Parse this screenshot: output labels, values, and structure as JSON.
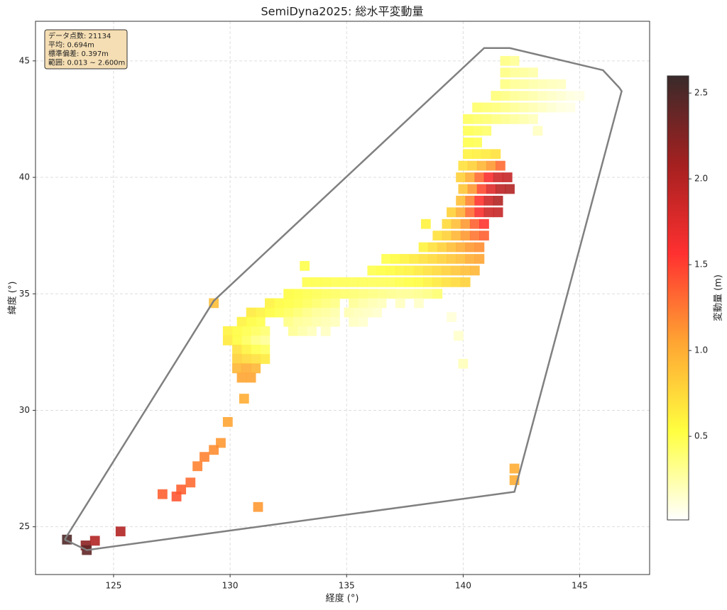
{
  "chart_data": {
    "type": "scatter",
    "title": "SemiDyna2025: 総水平変動量",
    "xlabel": "経度 (°)",
    "ylabel": "緯度 (°)",
    "colorbar_label": "変動量 (m)",
    "stats": [
      "データ点数: 21134",
      "平均: 0.694m",
      "標準偏差: 0.397m",
      "範囲: 0.013 ~ 2.600m"
    ],
    "xlim": [
      121.65,
      148.0
    ],
    "ylim": [
      22.95,
      46.7
    ],
    "xticks": [
      125,
      130,
      135,
      140,
      145
    ],
    "yticks": [
      25,
      30,
      35,
      40,
      45
    ],
    "clim": [
      0.013,
      2.6
    ],
    "cticks": [
      0.5,
      {
        "value": 1.0,
        "label": "1.0"
      },
      1.5,
      {
        "value": 2.0,
        "label": "2.0"
      },
      2.5
    ],
    "colormap": [
      "#ffffff",
      "#ffff40",
      "#ffa533",
      "#ff3030",
      "#a52020",
      "#3a2a2a"
    ],
    "grid": true,
    "hull": {
      "color": "#808080",
      "x": [
        122.9,
        123.85,
        142.2,
        146.8,
        146.7,
        146.0,
        142.0,
        140.9,
        129.3,
        122.9
      ],
      "y": [
        24.45,
        24.0,
        26.5,
        43.7,
        43.85,
        44.6,
        45.55,
        45.55,
        34.7,
        24.45
      ]
    },
    "x": [
      141.8,
      142.2,
      141.8,
      142.2,
      142.6,
      143.0,
      141.8,
      142.2,
      142.6,
      143.0,
      143.4,
      143.8,
      144.2,
      141.4,
      141.8,
      142.2,
      142.6,
      143.0,
      143.4,
      143.8,
      144.2,
      144.6,
      145.0,
      140.6,
      141.0,
      141.4,
      141.8,
      142.2,
      142.6,
      143.0,
      143.4,
      143.8,
      144.2,
      144.6,
      140.2,
      140.6,
      141.0,
      141.4,
      141.8,
      142.2,
      142.6,
      143.0,
      140.2,
      140.6,
      141.0,
      143.2,
      140.2,
      140.6,
      140.2,
      140.6,
      141.0,
      141.4,
      140.0,
      140.4,
      140.8,
      141.2,
      141.6,
      139.9,
      140.3,
      140.7,
      141.1,
      141.5,
      141.9,
      140.0,
      140.4,
      140.8,
      141.2,
      141.6,
      142.0,
      139.9,
      140.3,
      140.7,
      141.1,
      141.5,
      139.5,
      139.9,
      140.3,
      140.7,
      141.1,
      141.5,
      138.4,
      139.3,
      139.7,
      140.1,
      140.5,
      140.9,
      138.9,
      139.3,
      139.7,
      140.1,
      140.5,
      140.9,
      138.3,
      138.7,
      139.1,
      139.5,
      139.9,
      140.3,
      140.7,
      136.7,
      137.1,
      137.5,
      137.9,
      138.3,
      138.7,
      139.1,
      139.5,
      139.9,
      140.3,
      140.7,
      136.1,
      136.5,
      136.9,
      137.3,
      137.7,
      138.1,
      138.5,
      138.9,
      139.3,
      139.7,
      140.1,
      140.5,
      133.3,
      133.7,
      134.1,
      134.5,
      134.9,
      135.3,
      135.7,
      136.1,
      136.5,
      136.9,
      137.3,
      137.7,
      138.1,
      138.5,
      138.9,
      139.3,
      139.7,
      140.1,
      132.5,
      132.9,
      133.3,
      133.7,
      134.1,
      134.5,
      134.9,
      135.3,
      135.7,
      136.1,
      136.5,
      136.9,
      137.3,
      137.7,
      138.1,
      138.5,
      138.9,
      131.7,
      132.1,
      132.5,
      132.9,
      133.3,
      133.7,
      134.1,
      134.5,
      135.3,
      135.7,
      136.1,
      136.5,
      137.3,
      138.1,
      130.9,
      131.3,
      131.7,
      132.1,
      132.5,
      132.9,
      133.3,
      133.7,
      134.1,
      134.5,
      135.1,
      135.5,
      135.9,
      136.3,
      130.5,
      130.9,
      131.3,
      132.5,
      132.9,
      133.3,
      133.7,
      134.1,
      134.5,
      135.3,
      135.7,
      129.9,
      130.3,
      130.7,
      131.1,
      131.5,
      132.7,
      133.1,
      133.5,
      134.1,
      129.9,
      130.3,
      130.7,
      131.1,
      131.5,
      130.3,
      130.7,
      131.1,
      131.5,
      130.3,
      130.7,
      131.1,
      131.5,
      130.3,
      130.7,
      131.1,
      130.5,
      130.9,
      130.6,
      129.9,
      129.6,
      129.3,
      128.9,
      128.6,
      128.3,
      127.9,
      127.7,
      127.1,
      125.3,
      124.2,
      123.8,
      123.0,
      123.85,
      142.2,
      142.2,
      131.2,
      129.3,
      139.5,
      139.8,
      140.0,
      133.2
    ],
    "y": [
      45.0,
      45.0,
      44.5,
      44.5,
      44.5,
      44.5,
      44.0,
      44.0,
      44.0,
      44.0,
      44.0,
      44.0,
      44.0,
      43.5,
      43.5,
      43.5,
      43.5,
      43.5,
      43.5,
      43.5,
      43.5,
      43.5,
      43.5,
      43.0,
      43.0,
      43.0,
      43.0,
      43.0,
      43.0,
      43.0,
      43.0,
      43.0,
      43.0,
      43.0,
      42.5,
      42.5,
      42.5,
      42.5,
      42.5,
      42.5,
      42.5,
      42.5,
      42.0,
      42.0,
      42.0,
      42.0,
      41.5,
      41.5,
      41.0,
      41.0,
      41.0,
      41.0,
      40.5,
      40.5,
      40.5,
      40.5,
      40.5,
      40.0,
      40.0,
      40.0,
      40.0,
      40.0,
      40.0,
      39.5,
      39.5,
      39.5,
      39.5,
      39.5,
      39.5,
      39.0,
      39.0,
      39.0,
      39.0,
      39.0,
      38.5,
      38.5,
      38.5,
      38.5,
      38.5,
      38.5,
      38.0,
      38.0,
      38.0,
      38.0,
      38.0,
      38.0,
      37.5,
      37.5,
      37.5,
      37.5,
      37.5,
      37.5,
      37.0,
      37.0,
      37.0,
      37.0,
      37.0,
      37.0,
      37.0,
      36.5,
      36.5,
      36.5,
      36.5,
      36.5,
      36.5,
      36.5,
      36.5,
      36.5,
      36.5,
      36.5,
      36.0,
      36.0,
      36.0,
      36.0,
      36.0,
      36.0,
      36.0,
      36.0,
      36.0,
      36.0,
      36.0,
      36.0,
      35.5,
      35.5,
      35.5,
      35.5,
      35.5,
      35.5,
      35.5,
      35.5,
      35.5,
      35.5,
      35.5,
      35.5,
      35.5,
      35.5,
      35.5,
      35.5,
      35.5,
      35.5,
      35.0,
      35.0,
      35.0,
      35.0,
      35.0,
      35.0,
      35.0,
      35.0,
      35.0,
      35.0,
      35.0,
      35.0,
      35.0,
      35.0,
      35.0,
      35.0,
      35.0,
      34.6,
      34.6,
      34.6,
      34.6,
      34.6,
      34.6,
      34.6,
      34.6,
      34.6,
      34.6,
      34.6,
      34.6,
      34.6,
      34.6,
      34.2,
      34.2,
      34.2,
      34.2,
      34.2,
      34.2,
      34.2,
      34.2,
      34.2,
      34.2,
      34.2,
      34.2,
      34.2,
      34.2,
      33.8,
      33.8,
      33.8,
      33.8,
      33.8,
      33.8,
      33.8,
      33.8,
      33.8,
      33.8,
      33.8,
      33.4,
      33.4,
      33.4,
      33.4,
      33.4,
      33.4,
      33.4,
      33.4,
      33.4,
      33.0,
      33.0,
      33.0,
      33.0,
      33.0,
      32.6,
      32.6,
      32.6,
      32.6,
      32.2,
      32.2,
      32.2,
      32.2,
      31.8,
      31.8,
      31.8,
      31.4,
      31.4,
      30.5,
      29.5,
      28.6,
      28.3,
      28.0,
      27.6,
      26.9,
      26.6,
      26.3,
      26.4,
      24.8,
      24.4,
      24.2,
      24.45,
      24.0,
      27.5,
      27.0,
      25.85,
      34.6,
      34.0,
      33.2,
      32.0,
      36.2
    ],
    "values": [
      0.35,
      0.3,
      0.35,
      0.3,
      0.28,
      0.25,
      0.35,
      0.3,
      0.28,
      0.25,
      0.22,
      0.2,
      0.18,
      0.38,
      0.35,
      0.3,
      0.27,
      0.24,
      0.2,
      0.17,
      0.14,
      0.1,
      0.08,
      0.42,
      0.4,
      0.38,
      0.34,
      0.3,
      0.26,
      0.22,
      0.18,
      0.14,
      0.1,
      0.08,
      0.45,
      0.42,
      0.4,
      0.36,
      0.32,
      0.28,
      0.24,
      0.2,
      0.48,
      0.45,
      0.42,
      0.18,
      0.5,
      0.48,
      0.6,
      0.62,
      0.65,
      0.7,
      0.7,
      0.8,
      0.95,
      1.1,
      1.3,
      0.8,
      1.0,
      1.3,
      1.6,
      1.85,
      1.9,
      0.85,
      1.1,
      1.45,
      1.75,
      1.95,
      2.0,
      0.9,
      1.2,
      1.55,
      1.85,
      2.0,
      0.8,
      1.0,
      1.3,
      1.6,
      1.85,
      1.9,
      0.6,
      0.75,
      0.9,
      1.1,
      1.35,
      1.55,
      0.7,
      0.8,
      0.95,
      1.1,
      1.25,
      1.35,
      0.6,
      0.7,
      0.8,
      0.9,
      1.0,
      1.1,
      1.15,
      0.5,
      0.55,
      0.6,
      0.65,
      0.7,
      0.75,
      0.8,
      0.85,
      0.9,
      1.0,
      1.05,
      0.5,
      0.52,
      0.55,
      0.58,
      0.6,
      0.65,
      0.7,
      0.75,
      0.8,
      0.85,
      0.9,
      0.95,
      0.5,
      0.5,
      0.5,
      0.48,
      0.48,
      0.47,
      0.47,
      0.46,
      0.46,
      0.47,
      0.5,
      0.52,
      0.55,
      0.6,
      0.65,
      0.7,
      0.75,
      0.8,
      0.55,
      0.52,
      0.5,
      0.48,
      0.46,
      0.44,
      0.42,
      0.4,
      0.38,
      0.36,
      0.34,
      0.32,
      0.3,
      0.3,
      0.32,
      0.35,
      0.4,
      0.6,
      0.55,
      0.52,
      0.5,
      0.46,
      0.42,
      0.38,
      0.35,
      0.3,
      0.26,
      0.22,
      0.2,
      0.18,
      0.16,
      0.65,
      0.6,
      0.55,
      0.5,
      0.45,
      0.4,
      0.35,
      0.3,
      0.28,
      0.25,
      0.22,
      0.2,
      0.18,
      0.15,
      0.6,
      0.55,
      0.5,
      0.35,
      0.3,
      0.28,
      0.25,
      0.22,
      0.2,
      0.18,
      0.15,
      0.6,
      0.55,
      0.5,
      0.45,
      0.4,
      0.3,
      0.25,
      0.2,
      0.18,
      0.65,
      0.55,
      0.45,
      0.35,
      0.3,
      0.7,
      0.6,
      0.5,
      0.45,
      0.8,
      0.75,
      0.7,
      0.65,
      0.95,
      1.0,
      0.95,
      1.05,
      1.05,
      1.0,
      1.05,
      1.1,
      1.15,
      1.2,
      1.2,
      1.3,
      1.35,
      1.4,
      1.35,
      2.0,
      2.0,
      2.2,
      2.5,
      2.4,
      1.0,
      1.0,
      1.1,
      0.9,
      0.12,
      0.15,
      0.2,
      0.5
    ]
  }
}
